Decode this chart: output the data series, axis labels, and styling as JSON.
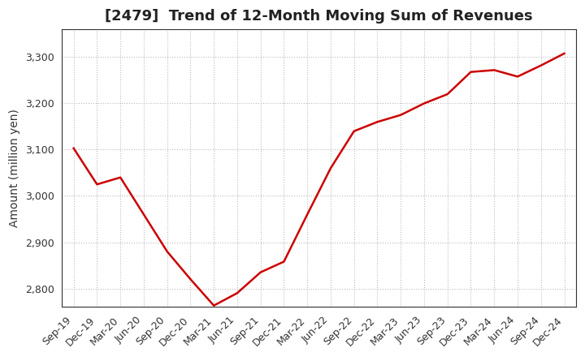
{
  "title": "[2479]  Trend of 12-Month Moving Sum of Revenues",
  "ylabel": "Amount (million yen)",
  "line_color": "#cc0000",
  "background_color": "#ffffff",
  "plot_background": "#ffffff",
  "grid_color": "#bbbbbb",
  "x_labels": [
    "Sep-19",
    "Dec-19",
    "Mar-20",
    "Jun-20",
    "Sep-20",
    "Dec-20",
    "Mar-21",
    "Jun-21",
    "Sep-21",
    "Dec-21",
    "Mar-22",
    "Jun-22",
    "Sep-22",
    "Dec-22",
    "Mar-23",
    "Jun-23",
    "Sep-23",
    "Dec-23",
    "Mar-24",
    "Jun-24",
    "Sep-24",
    "Dec-24"
  ],
  "y_values": [
    3103,
    3025,
    3040,
    2960,
    2880,
    2820,
    2763,
    2790,
    2835,
    2858,
    2960,
    3060,
    3140,
    3160,
    3175,
    3200,
    3220,
    3268,
    3272,
    3258,
    3282,
    3308
  ],
  "ylim_min": 2760,
  "ylim_max": 3360,
  "yticks": [
    2800,
    2900,
    3000,
    3100,
    3200,
    3300
  ],
  "title_fontsize": 13,
  "label_fontsize": 10,
  "tick_fontsize": 9,
  "line_width": 1.8
}
